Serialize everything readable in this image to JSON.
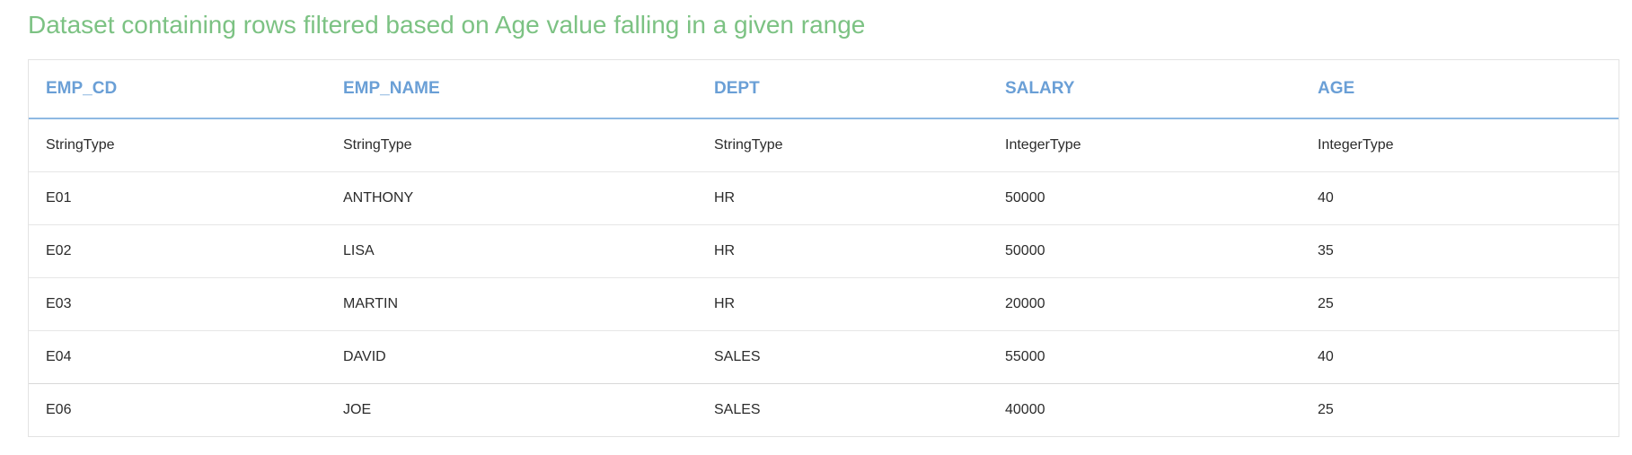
{
  "title": "Dataset containing rows filtered based on Age value falling in a given range",
  "table": {
    "columns": [
      "EMP_CD",
      "EMP_NAME",
      "DEPT",
      "SALARY",
      "AGE"
    ],
    "types": [
      "StringType",
      "StringType",
      "StringType",
      "IntegerType",
      "IntegerType"
    ],
    "rows": [
      [
        "E01",
        "ANTHONY",
        "HR",
        "50000",
        "40"
      ],
      [
        "E02",
        "LISA",
        "HR",
        "50000",
        "35"
      ],
      [
        "E03",
        "MARTIN",
        "HR",
        "20000",
        "25"
      ],
      [
        "E04",
        "DAVID",
        "SALES",
        "55000",
        "40"
      ],
      [
        "E06",
        "JOE",
        "SALES",
        "40000",
        "25"
      ]
    ]
  },
  "colors": {
    "title": "#7cc283",
    "header_text": "#6a9fd6",
    "header_rule": "#8fb9e3",
    "cell_text": "#2b2b2b"
  }
}
